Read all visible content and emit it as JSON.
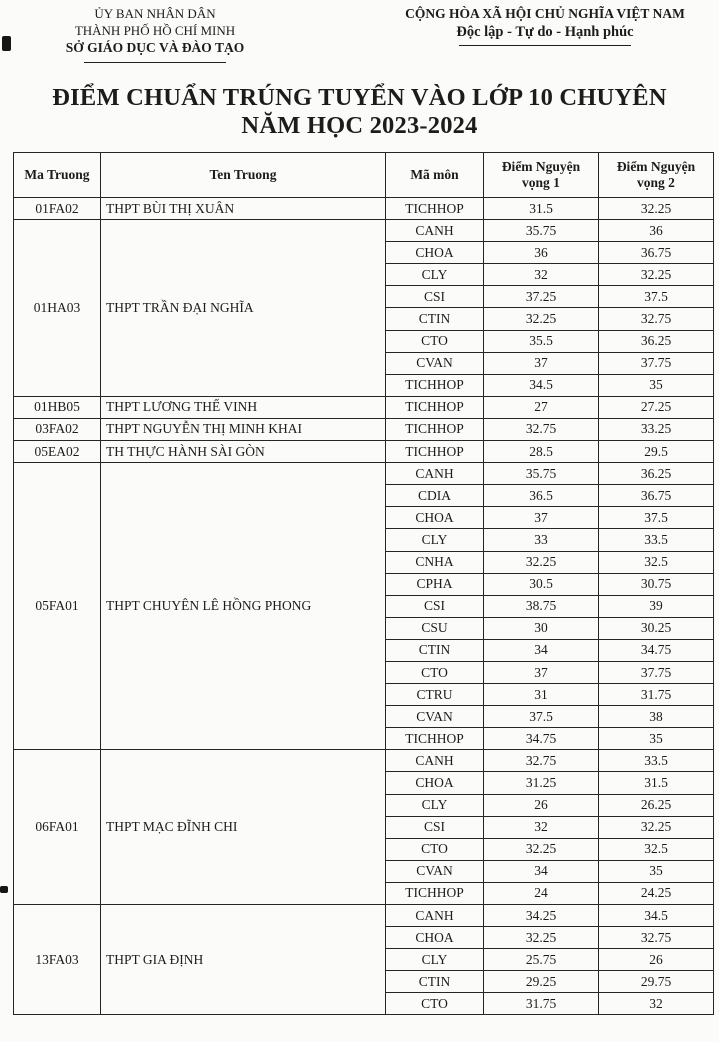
{
  "colors": {
    "page_bg": "#fbfbf9",
    "text": "#1c1c1c",
    "border": "#262626"
  },
  "header": {
    "left": {
      "line1": "ỦY BAN NHÂN DÂN",
      "line2": "THÀNH PHỐ HỒ CHÍ MINH",
      "line3": "SỞ GIÁO DỤC VÀ ĐÀO TẠO"
    },
    "right": {
      "line1": "CỘNG HÒA XÃ HỘI CHỦ NGHĨA VIỆT NAM",
      "line2": "Độc lập - Tự do - Hạnh phúc"
    }
  },
  "title": {
    "line1": "ĐIỂM CHUẨN TRÚNG TUYỂN VÀO LỚP 10 CHUYÊN",
    "line2": "NĂM HỌC 2023-2024"
  },
  "table": {
    "columns": [
      "Ma Truong",
      "Ten Truong",
      "Mã môn",
      "Điểm Nguyện vọng 1",
      "Điểm Nguyện vọng 2"
    ],
    "schools": [
      {
        "code": "01FA02",
        "name": "THPT BÙI THỊ XUÂN",
        "rows": [
          [
            "TICHHOP",
            "31.5",
            "32.25"
          ]
        ]
      },
      {
        "code": "01HA03",
        "name": "THPT TRẦN ĐẠI NGHĨA",
        "rows": [
          [
            "CANH",
            "35.75",
            "36"
          ],
          [
            "CHOA",
            "36",
            "36.75"
          ],
          [
            "CLY",
            "32",
            "32.25"
          ],
          [
            "CSI",
            "37.25",
            "37.5"
          ],
          [
            "CTIN",
            "32.25",
            "32.75"
          ],
          [
            "CTO",
            "35.5",
            "36.25"
          ],
          [
            "CVAN",
            "37",
            "37.75"
          ],
          [
            "TICHHOP",
            "34.5",
            "35"
          ]
        ]
      },
      {
        "code": "01HB05",
        "name": "THPT LƯƠNG THẾ VINH",
        "rows": [
          [
            "TICHHOP",
            "27",
            "27.25"
          ]
        ]
      },
      {
        "code": "03FA02",
        "name": "THPT NGUYỄN THỊ MINH KHAI",
        "rows": [
          [
            "TICHHOP",
            "32.75",
            "33.25"
          ]
        ]
      },
      {
        "code": "05EA02",
        "name": "TH THỰC HÀNH SÀI GÒN",
        "rows": [
          [
            "TICHHOP",
            "28.5",
            "29.5"
          ]
        ]
      },
      {
        "code": "05FA01",
        "name": "THPT CHUYÊN LÊ HỒNG PHONG",
        "rows": [
          [
            "CANH",
            "35.75",
            "36.25"
          ],
          [
            "CDIA",
            "36.5",
            "36.75"
          ],
          [
            "CHOA",
            "37",
            "37.5"
          ],
          [
            "CLY",
            "33",
            "33.5"
          ],
          [
            "CNHA",
            "32.25",
            "32.5"
          ],
          [
            "CPHA",
            "30.5",
            "30.75"
          ],
          [
            "CSI",
            "38.75",
            "39"
          ],
          [
            "CSU",
            "30",
            "30.25"
          ],
          [
            "CTIN",
            "34",
            "34.75"
          ],
          [
            "CTO",
            "37",
            "37.75"
          ],
          [
            "CTRU",
            "31",
            "31.75"
          ],
          [
            "CVAN",
            "37.5",
            "38"
          ],
          [
            "TICHHOP",
            "34.75",
            "35"
          ]
        ]
      },
      {
        "code": "06FA01",
        "name": "THPT MẠC ĐĨNH CHI",
        "rows": [
          [
            "CANH",
            "32.75",
            "33.5"
          ],
          [
            "CHOA",
            "31.25",
            "31.5"
          ],
          [
            "CLY",
            "26",
            "26.25"
          ],
          [
            "CSI",
            "32",
            "32.25"
          ],
          [
            "CTO",
            "32.25",
            "32.5"
          ],
          [
            "CVAN",
            "34",
            "35"
          ],
          [
            "TICHHOP",
            "24",
            "24.25"
          ]
        ]
      },
      {
        "code": "13FA03",
        "name": "THPT GIA ĐỊNH",
        "rows": [
          [
            "CANH",
            "34.25",
            "34.5"
          ],
          [
            "CHOA",
            "32.25",
            "32.75"
          ],
          [
            "CLY",
            "25.75",
            "26"
          ],
          [
            "CTIN",
            "29.25",
            "29.75"
          ],
          [
            "CTO",
            "31.75",
            "32"
          ]
        ]
      }
    ]
  }
}
